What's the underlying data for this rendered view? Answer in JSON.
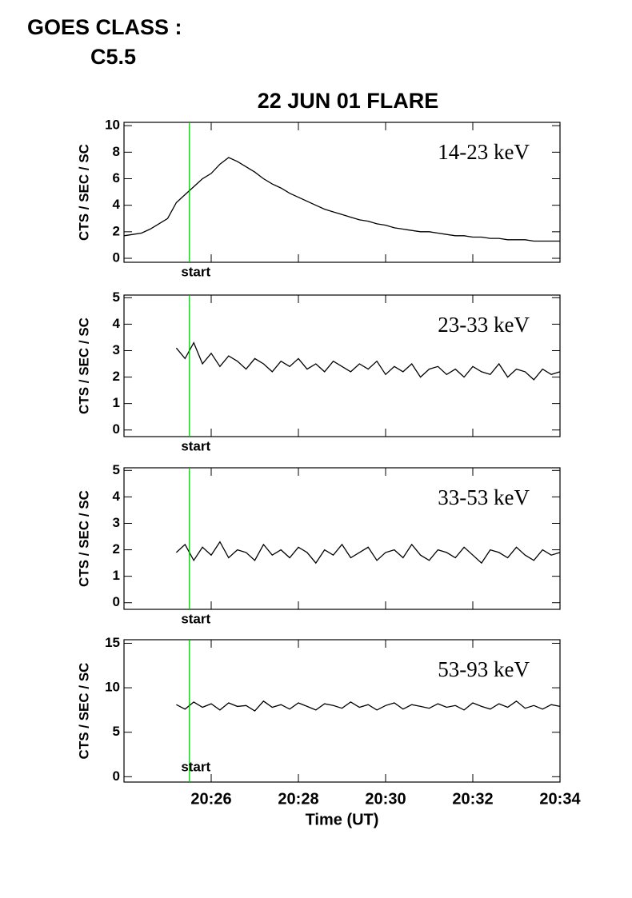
{
  "header": {
    "goes_label": "GOES CLASS :",
    "goes_class": "C5.5"
  },
  "chart_data": [
    {
      "type": "line",
      "title": "22 JUN 01 FLARE",
      "ylabel": "CTS / SEC / SC",
      "channel": "14-23 keV",
      "xlim": [
        24,
        34
      ],
      "ylim": [
        -0.3,
        10.25
      ],
      "yticks": [
        0,
        2,
        4,
        6,
        8,
        10
      ],
      "marker": {
        "x": 25.5,
        "label": "start",
        "color": "#00c000"
      },
      "series": [
        {
          "color": "#000000",
          "x": [
            24.0,
            24.2,
            24.4,
            24.6,
            24.8,
            25.0,
            25.2,
            25.4,
            25.6,
            25.8,
            26.0,
            26.2,
            26.4,
            26.6,
            26.8,
            27.0,
            27.2,
            27.4,
            27.6,
            27.8,
            28.0,
            28.2,
            28.4,
            28.6,
            28.8,
            29.0,
            29.2,
            29.4,
            29.6,
            29.8,
            30.0,
            30.2,
            30.4,
            30.6,
            30.8,
            31.0,
            31.2,
            31.4,
            31.6,
            31.8,
            32.0,
            32.2,
            32.4,
            32.6,
            32.8,
            33.0,
            33.2,
            33.4,
            33.6,
            33.8,
            34.0
          ],
          "values": [
            1.7,
            1.8,
            1.9,
            2.2,
            2.6,
            3.0,
            4.2,
            4.8,
            5.4,
            6.0,
            6.4,
            7.1,
            7.6,
            7.3,
            6.9,
            6.5,
            6.0,
            5.6,
            5.3,
            4.9,
            4.6,
            4.3,
            4.0,
            3.7,
            3.5,
            3.3,
            3.1,
            2.9,
            2.8,
            2.6,
            2.5,
            2.3,
            2.2,
            2.1,
            2.0,
            2.0,
            1.9,
            1.8,
            1.7,
            1.7,
            1.6,
            1.6,
            1.5,
            1.5,
            1.4,
            1.4,
            1.4,
            1.3,
            1.3,
            1.3,
            1.3
          ]
        }
      ]
    },
    {
      "type": "line",
      "ylabel": "CTS / SEC / SC",
      "channel": "23-33 keV",
      "xlim": [
        24,
        34
      ],
      "ylim": [
        -0.25,
        5.1
      ],
      "yticks": [
        0,
        1,
        2,
        3,
        4,
        5
      ],
      "marker": {
        "x": 25.5,
        "label": "start",
        "color": "#00c000"
      },
      "series": [
        {
          "color": "#000000",
          "x": [
            25.2,
            25.4,
            25.6,
            25.8,
            26.0,
            26.2,
            26.4,
            26.6,
            26.8,
            27.0,
            27.2,
            27.4,
            27.6,
            27.8,
            28.0,
            28.2,
            28.4,
            28.6,
            28.8,
            29.0,
            29.2,
            29.4,
            29.6,
            29.8,
            30.0,
            30.2,
            30.4,
            30.6,
            30.8,
            31.0,
            31.2,
            31.4,
            31.6,
            31.8,
            32.0,
            32.2,
            32.4,
            32.6,
            32.8,
            33.0,
            33.2,
            33.4,
            33.6,
            33.8,
            34.0
          ],
          "values": [
            3.1,
            2.7,
            3.3,
            2.5,
            2.9,
            2.4,
            2.8,
            2.6,
            2.3,
            2.7,
            2.5,
            2.2,
            2.6,
            2.4,
            2.7,
            2.3,
            2.5,
            2.2,
            2.6,
            2.4,
            2.2,
            2.5,
            2.3,
            2.6,
            2.1,
            2.4,
            2.2,
            2.5,
            2.0,
            2.3,
            2.4,
            2.1,
            2.3,
            2.0,
            2.4,
            2.2,
            2.1,
            2.5,
            2.0,
            2.3,
            2.2,
            1.9,
            2.3,
            2.1,
            2.2
          ]
        }
      ]
    },
    {
      "type": "line",
      "ylabel": "CTS / SEC / SC",
      "channel": "33-53 keV",
      "xlim": [
        24,
        34
      ],
      "ylim": [
        -0.25,
        5.1
      ],
      "yticks": [
        0,
        1,
        2,
        3,
        4,
        5
      ],
      "marker": {
        "x": 25.5,
        "label": "start",
        "color": "#00c000"
      },
      "series": [
        {
          "color": "#000000",
          "x": [
            25.2,
            25.4,
            25.6,
            25.8,
            26.0,
            26.2,
            26.4,
            26.6,
            26.8,
            27.0,
            27.2,
            27.4,
            27.6,
            27.8,
            28.0,
            28.2,
            28.4,
            28.6,
            28.8,
            29.0,
            29.2,
            29.4,
            29.6,
            29.8,
            30.0,
            30.2,
            30.4,
            30.6,
            30.8,
            31.0,
            31.2,
            31.4,
            31.6,
            31.8,
            32.0,
            32.2,
            32.4,
            32.6,
            32.8,
            33.0,
            33.2,
            33.4,
            33.6,
            33.8,
            34.0
          ],
          "values": [
            1.9,
            2.2,
            1.6,
            2.1,
            1.8,
            2.3,
            1.7,
            2.0,
            1.9,
            1.6,
            2.2,
            1.8,
            2.0,
            1.7,
            2.1,
            1.9,
            1.5,
            2.0,
            1.8,
            2.2,
            1.7,
            1.9,
            2.1,
            1.6,
            1.9,
            2.0,
            1.7,
            2.2,
            1.8,
            1.6,
            2.0,
            1.9,
            1.7,
            2.1,
            1.8,
            1.5,
            2.0,
            1.9,
            1.7,
            2.1,
            1.8,
            1.6,
            2.0,
            1.8,
            1.9
          ]
        }
      ]
    },
    {
      "type": "line",
      "ylabel": "CTS / SEC / SC",
      "channel": "53-93 keV",
      "xlabel": "Time (UT)",
      "xlim": [
        24,
        34
      ],
      "ylim": [
        -0.6,
        15.4
      ],
      "yticks": [
        0,
        5,
        10,
        15
      ],
      "xticks": [
        {
          "value": 26,
          "label": "20:26"
        },
        {
          "value": 28,
          "label": "20:28"
        },
        {
          "value": 30,
          "label": "20:30"
        },
        {
          "value": 32,
          "label": "20:32"
        },
        {
          "value": 34,
          "label": "20:34"
        }
      ],
      "marker": {
        "x": 25.5,
        "label": "start",
        "color": "#00c000"
      },
      "series": [
        {
          "color": "#000000",
          "x": [
            25.2,
            25.4,
            25.6,
            25.8,
            26.0,
            26.2,
            26.4,
            26.6,
            26.8,
            27.0,
            27.2,
            27.4,
            27.6,
            27.8,
            28.0,
            28.2,
            28.4,
            28.6,
            28.8,
            29.0,
            29.2,
            29.4,
            29.6,
            29.8,
            30.0,
            30.2,
            30.4,
            30.6,
            30.8,
            31.0,
            31.2,
            31.4,
            31.6,
            31.8,
            32.0,
            32.2,
            32.4,
            32.6,
            32.8,
            33.0,
            33.2,
            33.4,
            33.6,
            33.8,
            34.0
          ],
          "values": [
            8.1,
            7.6,
            8.4,
            7.8,
            8.2,
            7.5,
            8.3,
            7.9,
            8.0,
            7.4,
            8.5,
            7.8,
            8.1,
            7.6,
            8.3,
            7.9,
            7.5,
            8.2,
            8.0,
            7.7,
            8.4,
            7.8,
            8.1,
            7.5,
            8.0,
            8.3,
            7.6,
            8.1,
            7.9,
            7.7,
            8.2,
            7.8,
            8.0,
            7.5,
            8.3,
            7.9,
            7.6,
            8.2,
            7.8,
            8.5,
            7.7,
            8.0,
            7.6,
            8.1,
            7.9
          ]
        }
      ]
    }
  ]
}
